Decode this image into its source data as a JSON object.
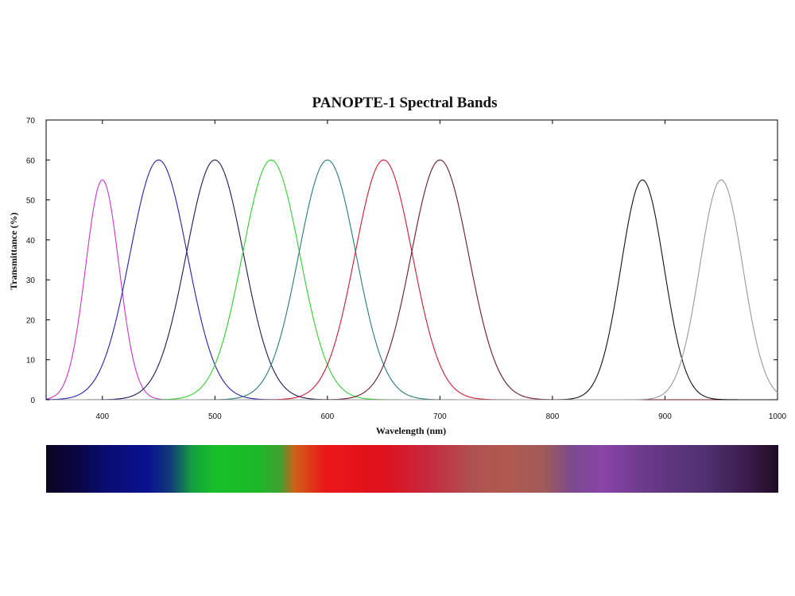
{
  "chart_data": {
    "type": "line",
    "title": "PANOPTE-1 Spectral Bands",
    "xlabel": "Wavelength (nm)",
    "ylabel": "Transmittance (%)",
    "xlim": [
      350,
      1000
    ],
    "ylim": [
      0,
      70
    ],
    "xticks": [
      400,
      500,
      600,
      700,
      800,
      900,
      1000
    ],
    "yticks": [
      0,
      10,
      20,
      30,
      40,
      50,
      60,
      70
    ],
    "grid": false,
    "legend": "none",
    "series": [
      {
        "center": 400,
        "peak": 55,
        "fwhm": 35,
        "color": "#cc33cc"
      },
      {
        "center": 450,
        "peak": 60,
        "fwhm": 60,
        "color": "#2222aa"
      },
      {
        "center": 500,
        "peak": 60,
        "fwhm": 60,
        "color": "#1a1a5a"
      },
      {
        "center": 550,
        "peak": 60,
        "fwhm": 60,
        "color": "#33cc33"
      },
      {
        "center": 600,
        "peak": 60,
        "fwhm": 60,
        "color": "#2a7a7a"
      },
      {
        "center": 650,
        "peak": 60,
        "fwhm": 60,
        "color": "#cc1a33"
      },
      {
        "center": 700,
        "peak": 60,
        "fwhm": 60,
        "color": "#6a1a2a"
      },
      {
        "center": 880,
        "peak": 55,
        "fwhm": 45,
        "color": "#111111"
      },
      {
        "center": 950,
        "peak": 55,
        "fwhm": 45,
        "color": "#999999"
      }
    ],
    "spectrum_bar": {
      "stops": [
        {
          "offset": 0.0,
          "color": "#0c0420"
        },
        {
          "offset": 0.04,
          "color": "#0a0640"
        },
        {
          "offset": 0.08,
          "color": "#0a0c70"
        },
        {
          "offset": 0.14,
          "color": "#0a1290"
        },
        {
          "offset": 0.17,
          "color": "#123a7a"
        },
        {
          "offset": 0.2,
          "color": "#14a040"
        },
        {
          "offset": 0.23,
          "color": "#18c028"
        },
        {
          "offset": 0.29,
          "color": "#1cb828"
        },
        {
          "offset": 0.32,
          "color": "#40a030"
        },
        {
          "offset": 0.34,
          "color": "#d06018"
        },
        {
          "offset": 0.38,
          "color": "#e81818"
        },
        {
          "offset": 0.46,
          "color": "#e0101c"
        },
        {
          "offset": 0.52,
          "color": "#c8283c"
        },
        {
          "offset": 0.58,
          "color": "#b05050"
        },
        {
          "offset": 0.63,
          "color": "#b05a50"
        },
        {
          "offset": 0.68,
          "color": "#a05a58"
        },
        {
          "offset": 0.72,
          "color": "#7a4a90"
        },
        {
          "offset": 0.76,
          "color": "#8a44a8"
        },
        {
          "offset": 0.82,
          "color": "#6a3a8a"
        },
        {
          "offset": 0.9,
          "color": "#503070"
        },
        {
          "offset": 0.96,
          "color": "#3a1a4a"
        },
        {
          "offset": 1.0,
          "color": "#1e0c24"
        }
      ]
    }
  }
}
